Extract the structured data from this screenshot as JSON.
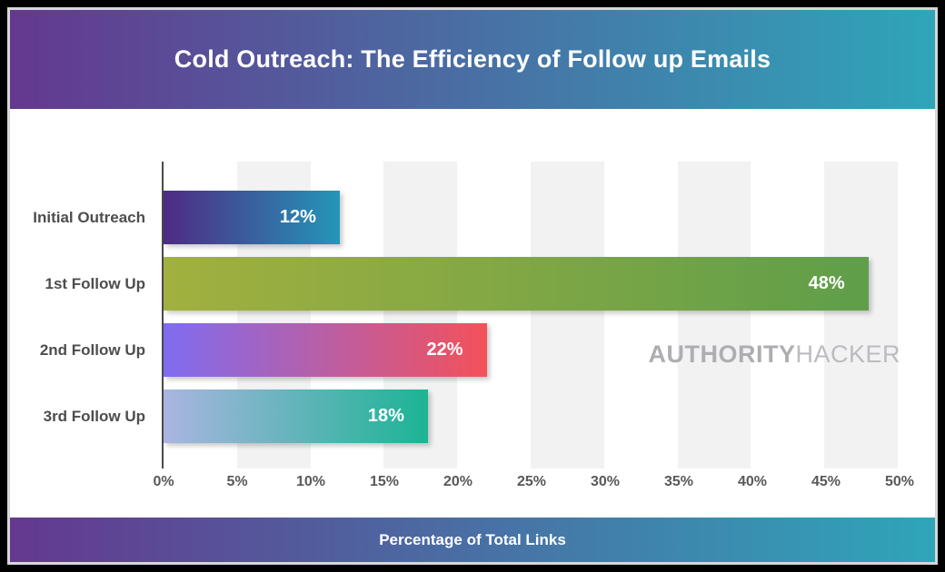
{
  "header": {
    "title": "Cold Outreach: The Efficiency of Follow up Emails"
  },
  "footer": {
    "xaxis_title": "Percentage of Total Links"
  },
  "watermark": {
    "bold_part": "AUTHORITY",
    "light_part": "HACKER"
  },
  "colors": {
    "banner_gradient_start": "#64388f",
    "banner_gradient_mid": "#496fa4",
    "banner_gradient_end": "#2fa5b9",
    "chart_background": "#ffffff",
    "grid_stripe": "#f2f2f3",
    "axis_line": "#4a4a4c",
    "category_text": "#4d4d4f",
    "tick_text": "#58585a",
    "value_text": "#ffffff"
  },
  "chart_data": {
    "type": "bar",
    "orientation": "horizontal",
    "title": "Cold Outreach: The Efficiency of Follow up Emails",
    "xlabel": "Percentage of Total Links",
    "ylabel": "",
    "categories": [
      "Initial Outreach",
      "1st Follow Up",
      "2nd Follow Up",
      "3rd Follow Up"
    ],
    "values": [
      12,
      48,
      22,
      18
    ],
    "value_labels": [
      "12%",
      "48%",
      "22%",
      "18%"
    ],
    "xlim": [
      0,
      50
    ],
    "x_ticks": [
      "0%",
      "5%",
      "10%",
      "15%",
      "20%",
      "25%",
      "30%",
      "35%",
      "40%",
      "45%",
      "50%"
    ],
    "grid": "alternating vertical gray bands every 5%",
    "legend": "none",
    "bar_gradients": [
      {
        "from": "#4e2a84",
        "to": "#2496b8"
      },
      {
        "from": "#a2b03f",
        "to": "#5f9e4a"
      },
      {
        "from": "#7f6cf0",
        "to": "#f4515a"
      },
      {
        "from": "#aab5e1",
        "to": "#1cb494"
      }
    ]
  }
}
